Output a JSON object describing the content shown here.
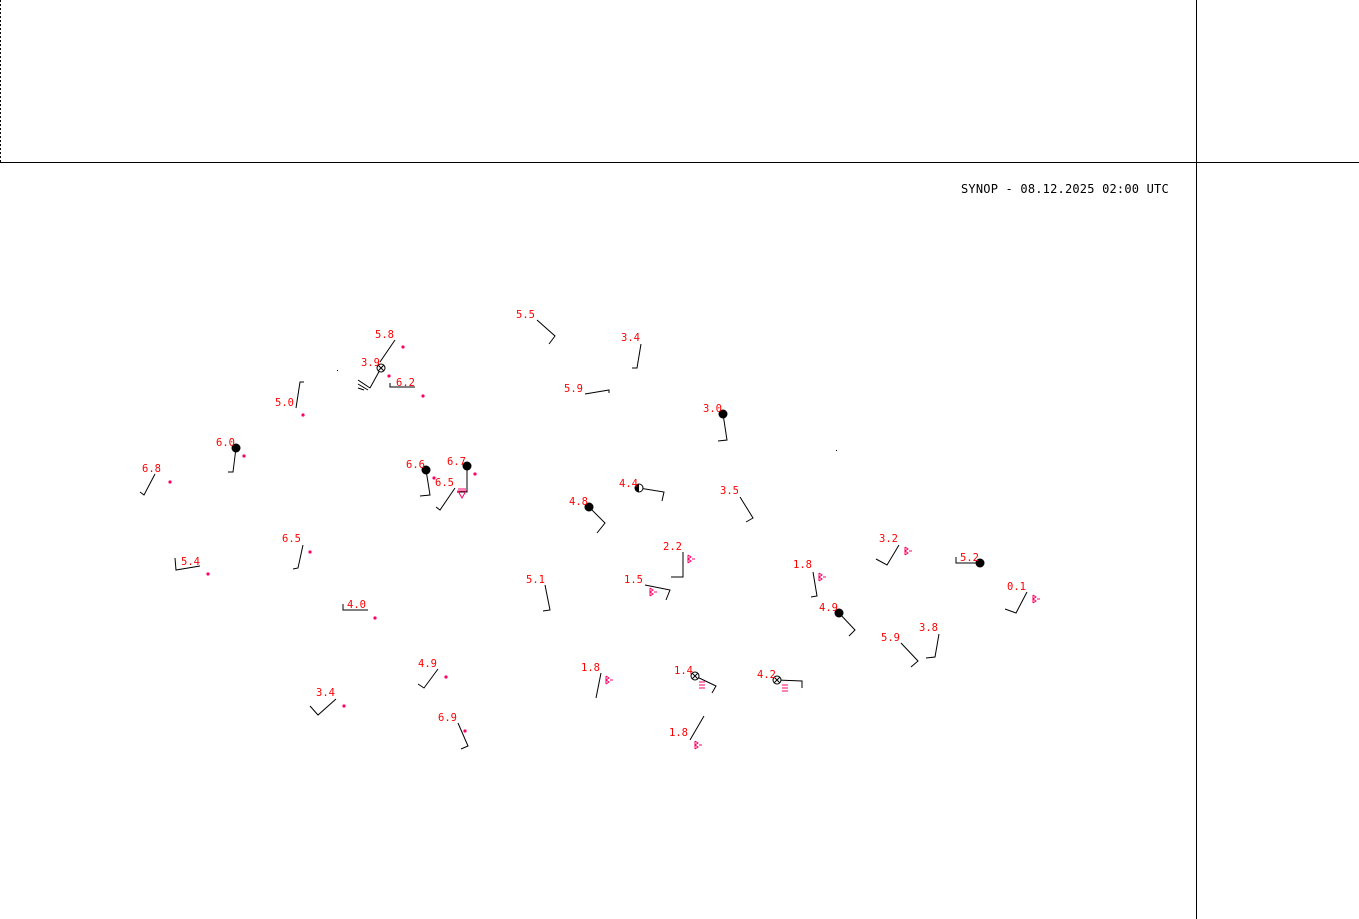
{
  "title": "SYNOP - 08.12.2025 02:00 UTC",
  "colors": {
    "temperature": "#ff0000",
    "weather": "#ff0066",
    "barb": "#000000",
    "frame": "#000000"
  },
  "stations": [
    {
      "temp": "5.8",
      "weather": "dot"
    },
    {
      "temp": "3.9",
      "weather": "dot",
      "cloud": "obscured"
    },
    {
      "temp": "6.2",
      "weather": "dot"
    },
    {
      "temp": "5.0",
      "weather": "dot"
    },
    {
      "temp": "5.5"
    },
    {
      "temp": "3.4"
    },
    {
      "temp": "5.9"
    },
    {
      "temp": "3.0",
      "cloud": "overcast"
    },
    {
      "temp": "6.0",
      "weather": "dot",
      "cloud": "overcast"
    },
    {
      "temp": "6.8",
      "weather": "dot"
    },
    {
      "temp": "6.6",
      "weather": "dot",
      "cloud": "overcast"
    },
    {
      "temp": "6.7",
      "weather": "dot",
      "cloud": "overcast"
    },
    {
      "temp": "6.5",
      "weather": "shower-triangle"
    },
    {
      "temp": "4.4",
      "cloud": "half"
    },
    {
      "temp": "3.5"
    },
    {
      "temp": "4.8",
      "cloud": "overcast"
    },
    {
      "temp": "2.2",
      "weather": "mist-symbol"
    },
    {
      "temp": "6.5",
      "weather": "dot"
    },
    {
      "temp": "5.4",
      "weather": "dot"
    },
    {
      "temp": "5.1"
    },
    {
      "temp": "1.5",
      "weather": "mist-symbol"
    },
    {
      "temp": "1.8",
      "weather": "mist-symbol"
    },
    {
      "temp": "3.2",
      "weather": "mist-symbol"
    },
    {
      "temp": "5.2",
      "cloud": "overcast"
    },
    {
      "temp": "0.1",
      "weather": "mist-symbol"
    },
    {
      "temp": "4.0",
      "weather": "dot"
    },
    {
      "temp": "4.9",
      "cloud": "overcast"
    },
    {
      "temp": "5.9"
    },
    {
      "temp": "3.8"
    },
    {
      "temp": "4.9",
      "weather": "dot"
    },
    {
      "temp": "1.8",
      "weather": "mist-symbol"
    },
    {
      "temp": "1.4",
      "weather": "fog",
      "cloud": "obscured"
    },
    {
      "temp": "4.2",
      "weather": "fog",
      "cloud": "obscured"
    },
    {
      "temp": "3.4",
      "weather": "dot"
    },
    {
      "temp": "6.9",
      "weather": "dot"
    },
    {
      "temp": "1.8",
      "weather": "mist-symbol"
    }
  ]
}
